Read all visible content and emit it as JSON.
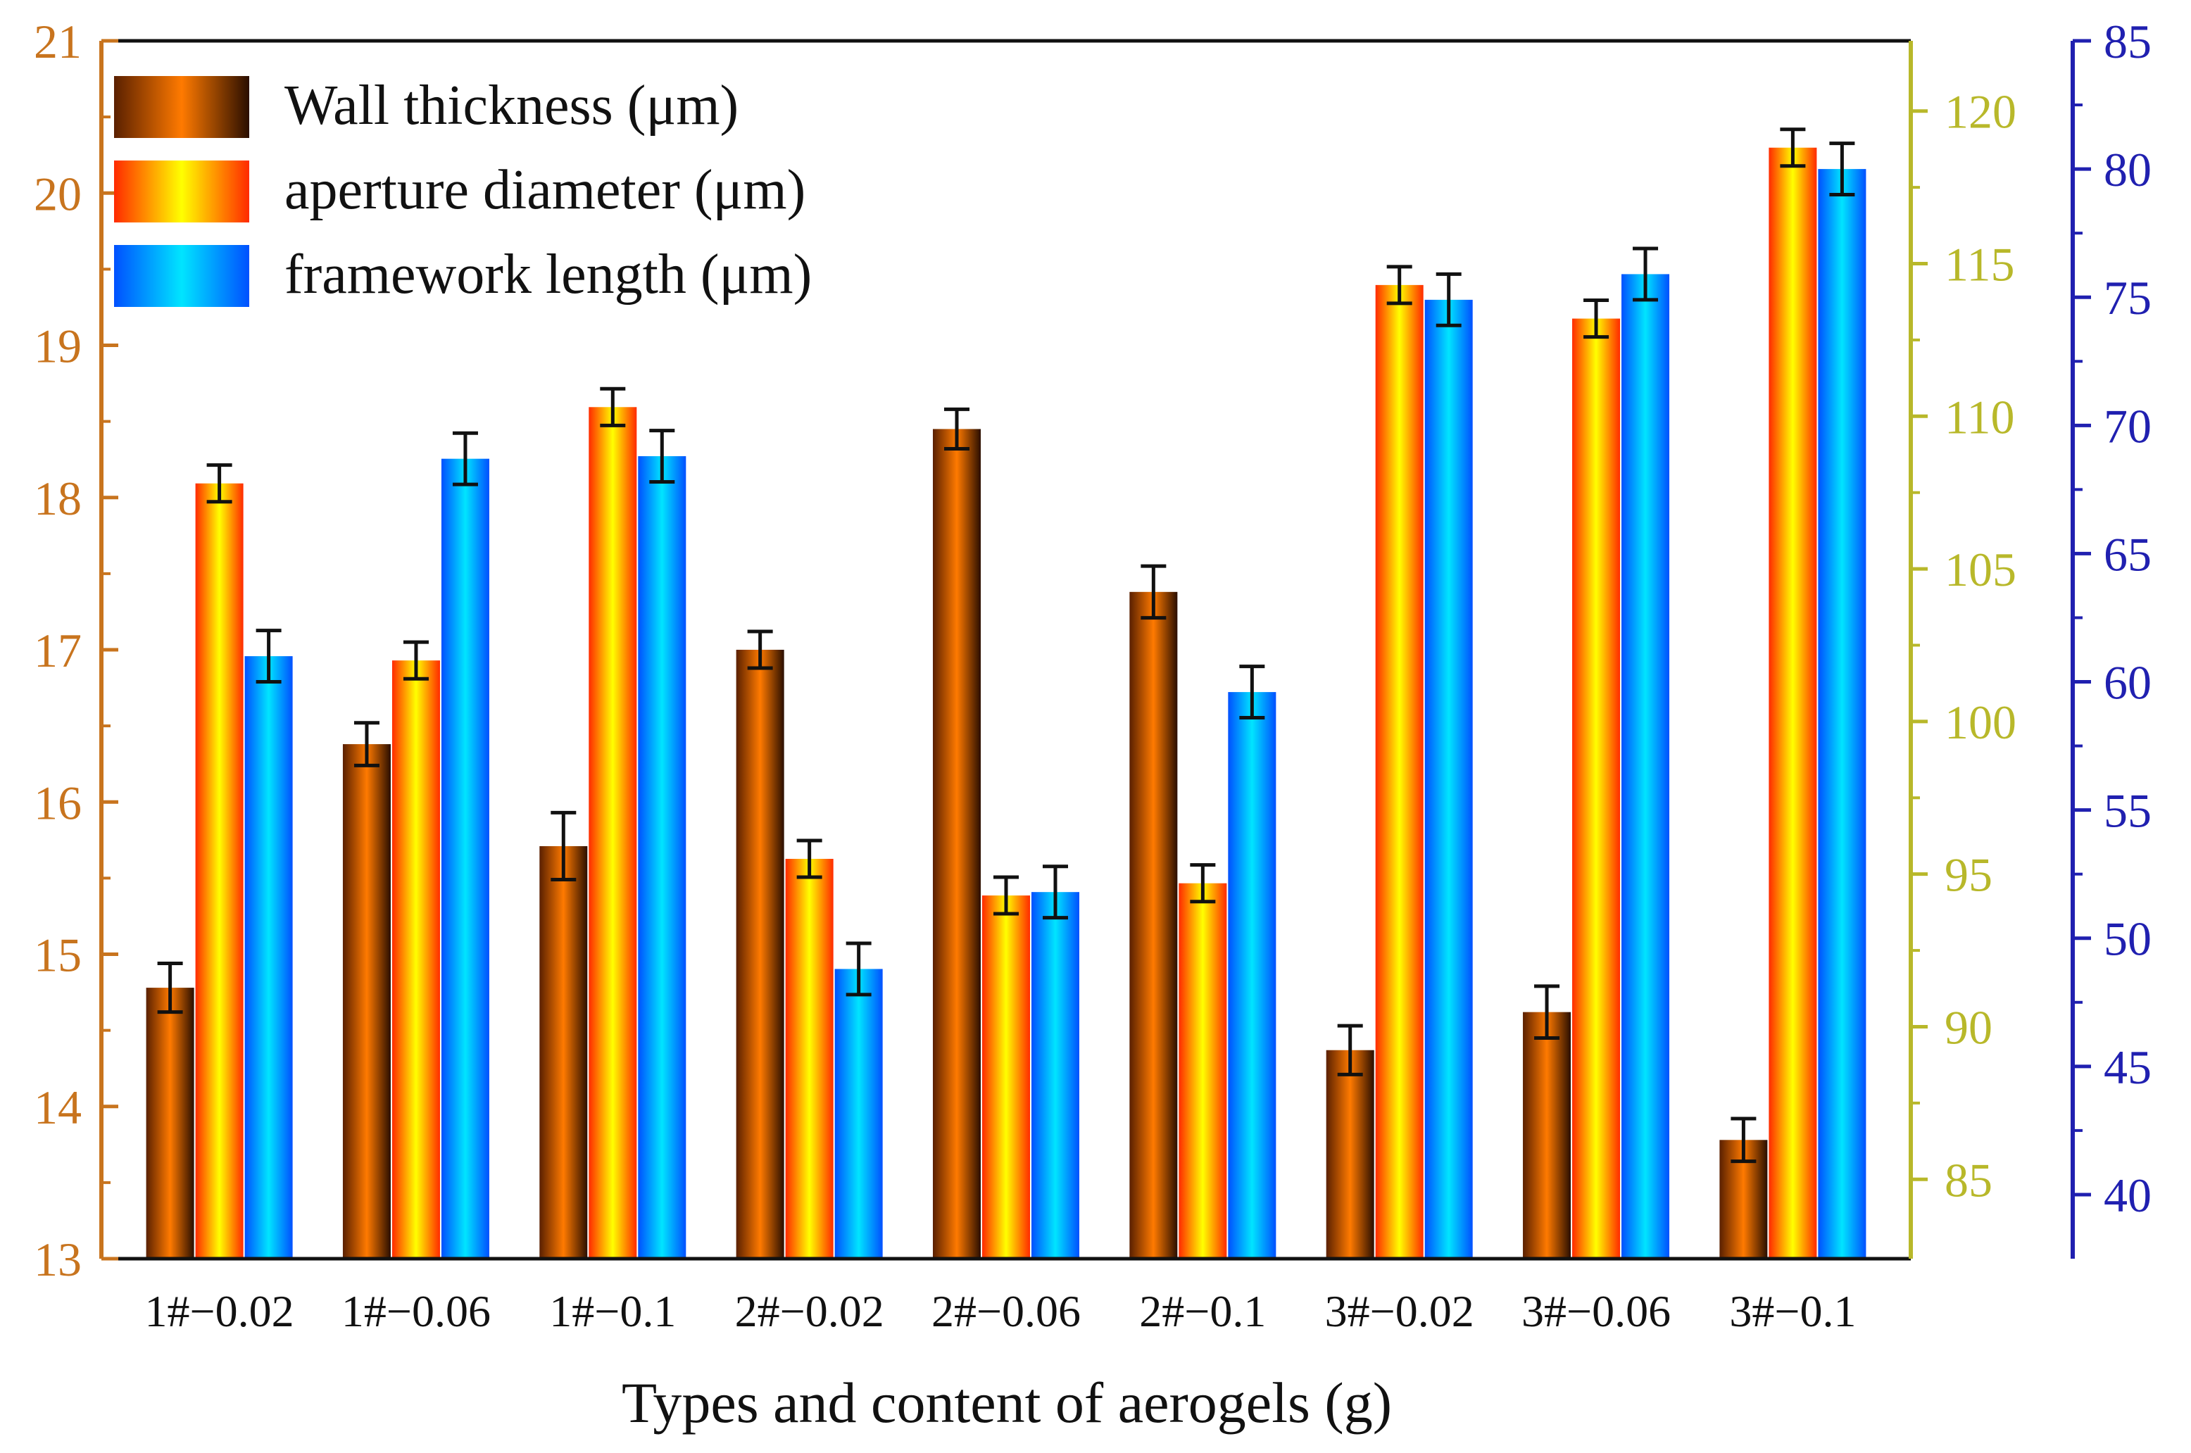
{
  "chart_data": {
    "type": "bar",
    "xlabel": "Types and content of aerogels (g)",
    "categories": [
      "1#−0.02",
      "1#−0.06",
      "1#−0.1",
      "2#−0.02",
      "2#−0.06",
      "2#−0.1",
      "3#−0.02",
      "3#−0.06",
      "3#−0.1"
    ],
    "legend_position": "top-left",
    "series": [
      {
        "name": "Wall thickness (μm)",
        "axis": "left",
        "values": [
          14.78,
          16.38,
          15.71,
          17.0,
          18.45,
          17.38,
          14.37,
          14.62,
          13.78
        ],
        "errors": [
          0.16,
          0.14,
          0.22,
          0.12,
          0.13,
          0.17,
          0.16,
          0.17,
          0.14
        ],
        "colors": [
          "#5a2000",
          "#ff7a00",
          "#2a0e00"
        ]
      },
      {
        "name": "aperture diameter (μm)",
        "axis": "right1",
        "values": [
          107.8,
          102.0,
          110.3,
          95.5,
          94.3,
          94.7,
          114.3,
          113.2,
          118.8
        ],
        "errors": [
          0.6,
          0.6,
          0.6,
          0.6,
          0.6,
          0.6,
          0.6,
          0.6,
          0.6
        ],
        "colors": [
          "#ff2a00",
          "#ffff00",
          "#ff2a00"
        ]
      },
      {
        "name": "framework length (μm)",
        "axis": "right2",
        "values": [
          61.0,
          68.7,
          68.8,
          48.8,
          51.8,
          59.6,
          74.9,
          75.9,
          80.0
        ],
        "errors": [
          1.0,
          1.0,
          1.0,
          1.0,
          1.0,
          1.0,
          1.0,
          1.0,
          1.0
        ],
        "colors": [
          "#0050ff",
          "#00e5ff",
          "#0050ff"
        ]
      }
    ],
    "axes": {
      "left": {
        "ylim": [
          13,
          21
        ],
        "ticks": [
          13,
          14,
          15,
          16,
          17,
          18,
          19,
          20,
          21
        ],
        "color": "#c8741e"
      },
      "right1": {
        "ylim": [
          82.4,
          122.3
        ],
        "ticks": [
          85,
          90,
          95,
          100,
          105,
          110,
          115,
          120
        ],
        "color": "#b8b82a"
      },
      "right2": {
        "ylim": [
          37.5,
          85
        ],
        "ticks": [
          40,
          45,
          50,
          55,
          60,
          65,
          70,
          75,
          80,
          85
        ],
        "color": "#2020b0"
      }
    }
  }
}
